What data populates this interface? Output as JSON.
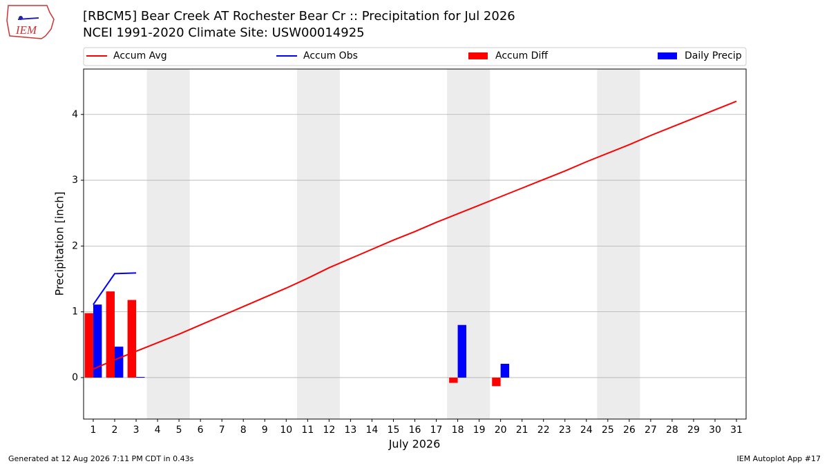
{
  "chart_data": {
    "type": "combo",
    "logo": "IEM",
    "title": "[RBCM5] Bear Creek  AT Rochester Bear Cr :: Precipitation for Jul 2026",
    "subtitle": "NCEI 1991-2020 Climate Site: USW00014925",
    "x_label": "July 2026",
    "y_label": "Precipitation [inch]",
    "x": [
      1,
      2,
      3,
      4,
      5,
      6,
      7,
      8,
      9,
      10,
      11,
      12,
      13,
      14,
      15,
      16,
      17,
      18,
      19,
      20,
      21,
      22,
      23,
      24,
      25,
      26,
      27,
      28,
      29,
      30,
      31
    ],
    "xlim": [
      0.55,
      31.45
    ],
    "xticks": [
      1,
      2,
      3,
      4,
      5,
      6,
      7,
      8,
      9,
      10,
      11,
      12,
      13,
      14,
      15,
      16,
      17,
      18,
      19,
      20,
      21,
      22,
      23,
      24,
      25,
      26,
      27,
      28,
      29,
      30,
      31
    ],
    "ylim": [
      -0.63,
      4.69
    ],
    "yticks": [
      0,
      1,
      2,
      3,
      4
    ],
    "grid": true,
    "shaded_spans": [
      [
        3.5,
        5.5
      ],
      [
        10.5,
        12.5
      ],
      [
        17.5,
        19.5
      ],
      [
        24.5,
        26.5
      ]
    ],
    "shade_color": "#ececec",
    "bar_width": 0.4,
    "series": [
      {
        "name": "Accum Avg",
        "type": "line",
        "color": "#ff0000",
        "values": [
          0.13,
          0.27,
          0.4,
          0.53,
          0.66,
          0.8,
          0.94,
          1.08,
          1.22,
          1.36,
          1.51,
          1.67,
          1.81,
          1.95,
          2.09,
          2.22,
          2.36,
          2.49,
          2.62,
          2.75,
          2.88,
          3.01,
          3.14,
          3.28,
          3.41,
          3.54,
          3.68,
          3.81,
          3.94,
          4.07,
          4.2
        ]
      },
      {
        "name": "Accum Obs",
        "type": "line",
        "color": "#0000ff",
        "values": [
          1.11,
          1.58,
          1.59,
          null,
          null,
          null,
          null,
          null,
          null,
          null,
          null,
          null,
          null,
          null,
          null,
          null,
          null,
          null,
          null,
          null,
          null,
          null,
          null,
          null,
          null,
          null,
          null,
          null,
          null,
          null,
          null
        ]
      },
      {
        "name": "Accum Diff",
        "type": "bar",
        "offset": -1,
        "color": "#ff0000",
        "values": [
          0.98,
          1.31,
          1.18,
          null,
          null,
          null,
          null,
          null,
          null,
          null,
          null,
          null,
          null,
          null,
          null,
          null,
          null,
          -0.08,
          null,
          -0.13,
          null,
          null,
          null,
          null,
          null,
          null,
          null,
          null,
          null,
          null,
          null
        ]
      },
      {
        "name": "Daily Precip",
        "type": "bar",
        "offset": 0,
        "color": "#0000ff",
        "values": [
          1.11,
          0.47,
          0.01,
          null,
          null,
          null,
          null,
          null,
          null,
          null,
          null,
          null,
          null,
          null,
          null,
          null,
          null,
          0.8,
          null,
          0.21,
          null,
          null,
          null,
          null,
          null,
          null,
          null,
          null,
          null,
          null,
          null
        ]
      }
    ],
    "footer_left": "Generated at 12 Aug 2026 7:11 PM CDT in 0.43s",
    "footer_right": "IEM Autoplot App #17"
  }
}
